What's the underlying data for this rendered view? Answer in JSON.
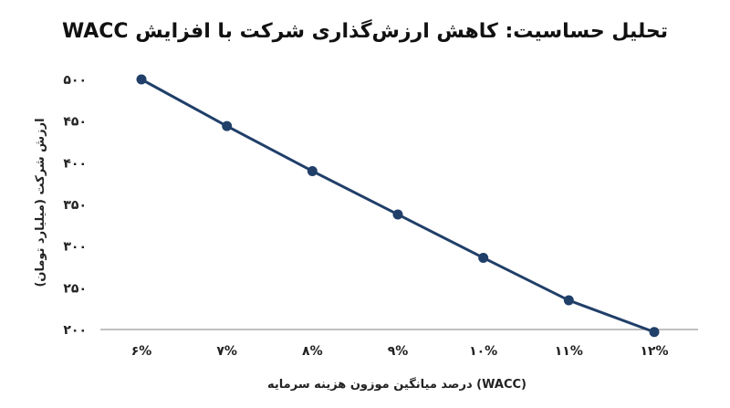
{
  "chart_data": {
    "type": "line",
    "title": "تحلیل حساسیت: کاهش ارزش‌گذاری شرکت با افزایش WACC",
    "xlabel": "درصد میانگین موزون هزینه سرمایه (WACC)",
    "ylabel": "ارزش شرکت (میلیارد تومان)",
    "categories": [
      "۶%",
      "۷%",
      "۸%",
      "۹%",
      "۱۰%",
      "۱۱%",
      "۱۲%"
    ],
    "series": [
      {
        "values": [
          500,
          444,
          390,
          338,
          286,
          235,
          197
        ]
      }
    ],
    "yticks": [
      200,
      250,
      300,
      350,
      400,
      450,
      500
    ],
    "ytick_labels": [
      "۲۰۰",
      "۲۵۰",
      "۳۰۰",
      "۳۵۰",
      "۴۰۰",
      "۴۵۰",
      "۵۰۰"
    ],
    "ylim": [
      200,
      500
    ],
    "grid": false,
    "legend": "none",
    "line_color": "#203f69",
    "marker_color": "#203f69",
    "axis_color": "#9a9a9a"
  }
}
